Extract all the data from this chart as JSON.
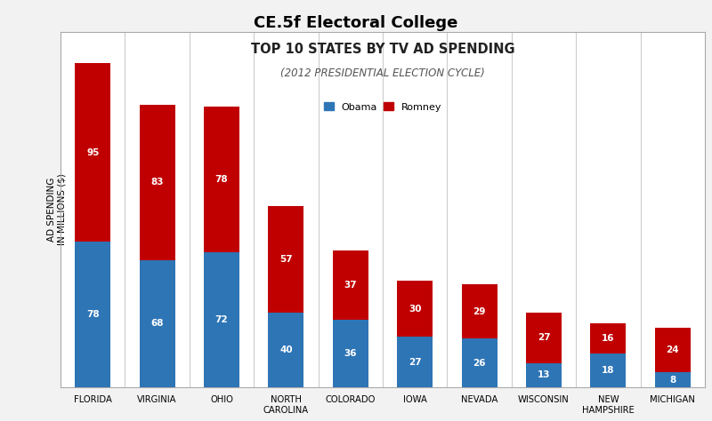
{
  "title": "CE.5f Electoral College",
  "chart_title_line1": "TOP 10 STATES BY TV AD SPENDING",
  "chart_title_line2": "(2012 PRESIDENTIAL ELECTION CYCLE)",
  "states": [
    "FLORIDA",
    "VIRGINIA",
    "OHIO",
    "NORTH\nCAROLINA",
    "COLORADO",
    "IOWA",
    "NEVADA",
    "WISCONSIN",
    "NEW\nHAMPSHIRE",
    "MICHIGAN"
  ],
  "obama": [
    78,
    68,
    72,
    40,
    36,
    27,
    26,
    13,
    18,
    8
  ],
  "romney": [
    95,
    83,
    78,
    57,
    37,
    30,
    29,
    27,
    16,
    24
  ],
  "obama_color": "#2E75B6",
  "romney_color": "#C00000",
  "ylabel": "AD SPENDING\nIN MILLIONS ($)",
  "legend_obama": "Obama",
  "legend_romney": "Romney",
  "fig_bg": "#F2F2F2",
  "chart_bg": "#FFFFFF",
  "bar_width": 0.55,
  "ylim": [
    0,
    190
  ]
}
